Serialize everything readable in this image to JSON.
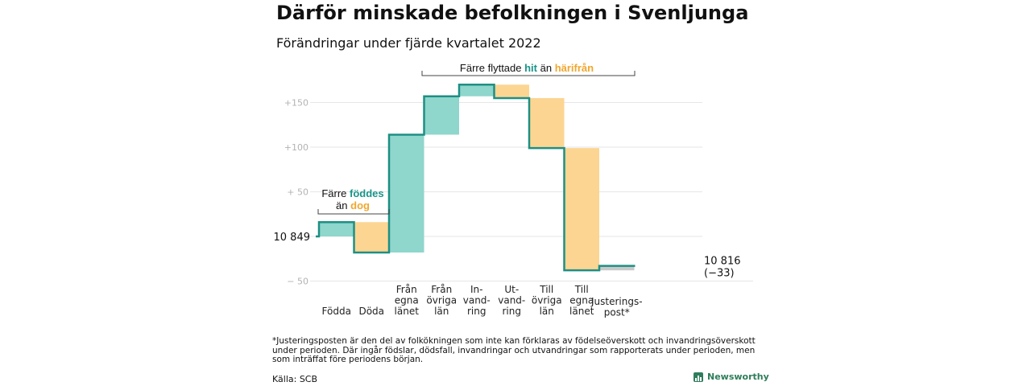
{
  "title": "Därför minskade befolkningen i Svenljunga",
  "subtitle": "Förändringar under fjärde kvartalet 2022",
  "colors": {
    "positive": "#8fd6cc",
    "negative": "#fcd592",
    "line": "#1e8f84",
    "teal_text": "#1a9489",
    "orange_text": "#f0a72e",
    "axis_text": "#b3b3b3",
    "grid": "#e6e6e6"
  },
  "chart_data": {
    "type": "waterfall",
    "title": "Därför minskade befolkningen i Svenljunga",
    "subtitle": "Förändringar under fjärde kvartalet 2022",
    "start_label": "10 849",
    "end_label": "10 816",
    "end_change_label": "(−33)",
    "start_value": 0,
    "yticks": [
      {
        "value": 150,
        "label": "+150"
      },
      {
        "value": 100,
        "label": "+100"
      },
      {
        "value": 50,
        "label": "+ 50"
      },
      {
        "value": 0,
        "label": ""
      },
      {
        "value": -50,
        "label": "− 50"
      }
    ],
    "ylim": [
      -50,
      170
    ],
    "categories": [
      {
        "key": "fodda",
        "lines": [
          "Födda"
        ],
        "change": 16
      },
      {
        "key": "doda",
        "lines": [
          "Döda"
        ],
        "change": -34
      },
      {
        "key": "egna_in",
        "lines": [
          "Från",
          "egna",
          "länet"
        ],
        "change": 132
      },
      {
        "key": "ovriga_in",
        "lines": [
          "Från",
          "övriga",
          "län"
        ],
        "change": 43
      },
      {
        "key": "invandring",
        "lines": [
          "In-",
          "vand-",
          "ring"
        ],
        "change": 13
      },
      {
        "key": "utvandring",
        "lines": [
          "Ut-",
          "vand-",
          "ring"
        ],
        "change": -15
      },
      {
        "key": "ovriga_ut",
        "lines": [
          "Till",
          "övriga",
          "län"
        ],
        "change": -56
      },
      {
        "key": "egna_ut",
        "lines": [
          "Till",
          "egna",
          "länet"
        ],
        "change": -137
      },
      {
        "key": "justering",
        "lines": [
          "Justerings-",
          "post*"
        ],
        "change": 5
      }
    ],
    "annotations": {
      "births": {
        "prefix": "Färre ",
        "highlight1": "föddes",
        "middle": "än ",
        "highlight2": "dog"
      },
      "moves": {
        "prefix": "Färre flyttade ",
        "highlight1": "hit",
        "middle": " än ",
        "highlight2": "härifrån"
      }
    }
  },
  "footnote": "*Justeringsposten är den del av folkökningen som inte kan förklaras av födelseöverskott och invandringsöverskott under perioden. Där ingår födslar, dödsfall, invandringar och utvandringar som rapporterats under perioden, men som inträffat före periodens början.",
  "source": "Källa: SCB",
  "brand": "Newsworthy"
}
